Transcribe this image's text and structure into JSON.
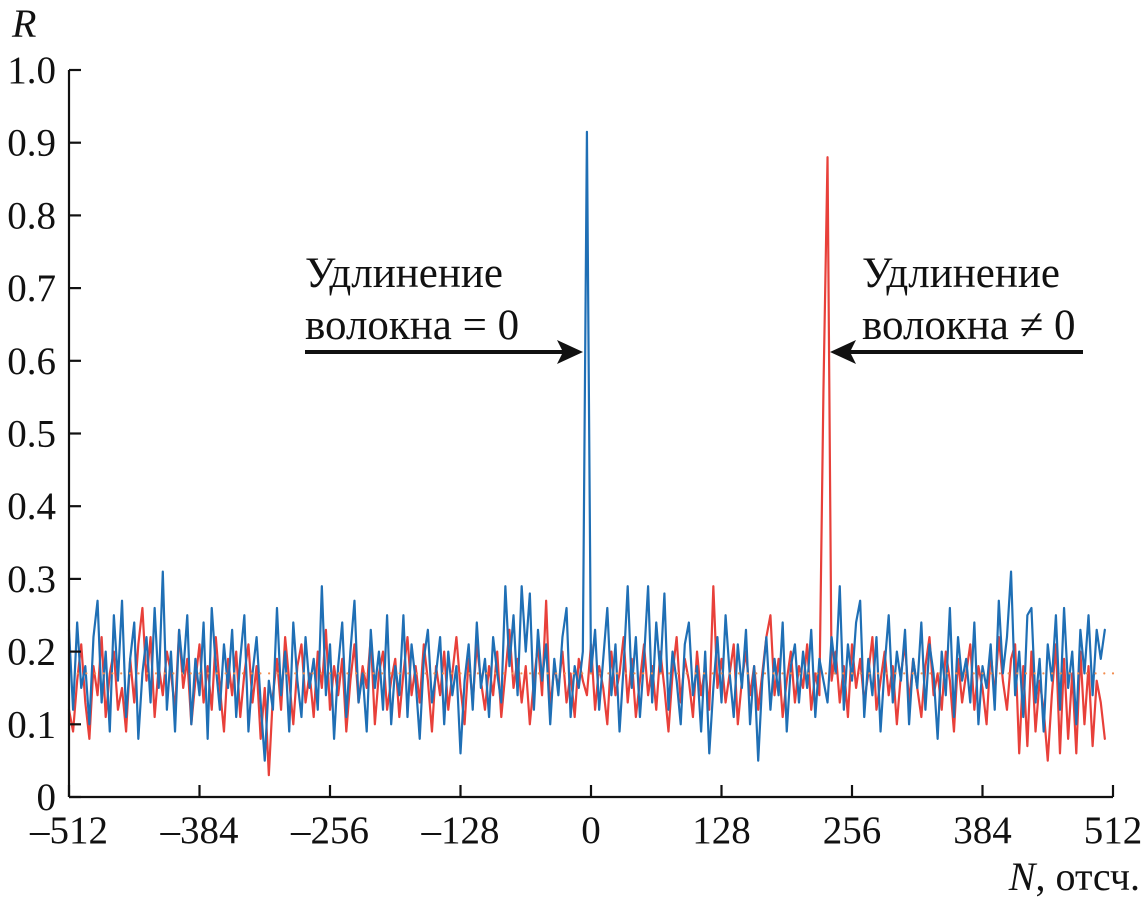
{
  "chart_data": {
    "type": "line",
    "ylabel": "R",
    "xlabel": "N, отсч.",
    "xlim": [
      -512,
      512
    ],
    "ylim": [
      0,
      1.0
    ],
    "grid": false,
    "xticks": [
      "–512",
      "–384",
      "–256",
      "–128",
      "0",
      "128",
      "256",
      "384",
      "512"
    ],
    "yticks": [
      "0",
      "0.1",
      "0.2",
      "0.3",
      "0.4",
      "0.5",
      "0.6",
      "0.7",
      "0.8",
      "0.9",
      "1.0"
    ],
    "x": [
      -512,
      -508,
      -504,
      -500,
      -496,
      -492,
      -488,
      -484,
      -480,
      -476,
      -472,
      -468,
      -464,
      -460,
      -456,
      -452,
      -448,
      -444,
      -440,
      -436,
      -432,
      -428,
      -424,
      -420,
      -416,
      -412,
      -408,
      -404,
      -400,
      -396,
      -392,
      -388,
      -384,
      -380,
      -376,
      -372,
      -368,
      -364,
      -360,
      -356,
      -352,
      -348,
      -344,
      -340,
      -336,
      -332,
      -328,
      -324,
      -320,
      -316,
      -312,
      -308,
      -304,
      -300,
      -296,
      -292,
      -288,
      -284,
      -280,
      -276,
      -272,
      -268,
      -264,
      -260,
      -256,
      -252,
      -248,
      -244,
      -240,
      -236,
      -232,
      -228,
      -224,
      -220,
      -216,
      -212,
      -208,
      -204,
      -200,
      -196,
      -192,
      -188,
      -184,
      -180,
      -176,
      -172,
      -168,
      -164,
      -160,
      -156,
      -152,
      -148,
      -144,
      -140,
      -136,
      -132,
      -128,
      -124,
      -120,
      -116,
      -112,
      -108,
      -104,
      -100,
      -96,
      -92,
      -88,
      -84,
      -80,
      -76,
      -72,
      -68,
      -64,
      -60,
      -56,
      -52,
      -48,
      -44,
      -40,
      -36,
      -32,
      -28,
      -24,
      -20,
      -16,
      -12,
      -8,
      -4,
      0,
      4,
      8,
      12,
      16,
      20,
      24,
      28,
      32,
      36,
      40,
      44,
      48,
      52,
      56,
      60,
      64,
      68,
      72,
      76,
      80,
      84,
      88,
      92,
      96,
      100,
      104,
      108,
      112,
      116,
      120,
      124,
      128,
      132,
      136,
      140,
      144,
      148,
      152,
      156,
      160,
      164,
      168,
      172,
      176,
      180,
      184,
      188,
      192,
      196,
      200,
      204,
      208,
      212,
      216,
      220,
      224,
      228,
      232,
      236,
      240,
      244,
      248,
      252,
      256,
      260,
      264,
      268,
      272,
      276,
      280,
      284,
      288,
      292,
      296,
      300,
      304,
      308,
      312,
      316,
      320,
      324,
      328,
      332,
      336,
      340,
      344,
      348,
      352,
      356,
      360,
      364,
      368,
      372,
      376,
      380,
      384,
      388,
      392,
      396,
      400,
      404,
      408,
      412,
      416,
      420,
      424,
      428,
      432,
      436,
      440,
      444,
      448,
      452,
      456,
      460,
      464,
      468,
      472,
      476,
      480,
      484,
      488,
      492,
      496,
      500,
      504
    ],
    "series": [
      {
        "color": "#e8403a",
        "values": [
          0.12,
          0.09,
          0.16,
          0.21,
          0.13,
          0.08,
          0.18,
          0.14,
          0.22,
          0.11,
          0.17,
          0.2,
          0.12,
          0.15,
          0.09,
          0.19,
          0.13,
          0.21,
          0.26,
          0.16,
          0.22,
          0.11,
          0.18,
          0.14,
          0.2,
          0.17,
          0.12,
          0.23,
          0.15,
          0.19,
          0.1,
          0.16,
          0.21,
          0.13,
          0.18,
          0.12,
          0.22,
          0.15,
          0.09,
          0.19,
          0.14,
          0.2,
          0.11,
          0.17,
          0.21,
          0.13,
          0.18,
          0.08,
          0.15,
          0.03,
          0.14,
          0.19,
          0.12,
          0.22,
          0.16,
          0.1,
          0.18,
          0.21,
          0.13,
          0.17,
          0.11,
          0.2,
          0.15,
          0.23,
          0.12,
          0.18,
          0.14,
          0.19,
          0.09,
          0.16,
          0.21,
          0.13,
          0.18,
          0.15,
          0.22,
          0.1,
          0.17,
          0.2,
          0.12,
          0.16,
          0.19,
          0.11,
          0.17,
          0.22,
          0.14,
          0.18,
          0.13,
          0.21,
          0.16,
          0.09,
          0.18,
          0.14,
          0.2,
          0.12,
          0.17,
          0.22,
          0.15,
          0.1,
          0.19,
          0.13,
          0.21,
          0.16,
          0.12,
          0.18,
          0.14,
          0.2,
          0.11,
          0.17,
          0.23,
          0.15,
          0.19,
          0.13,
          0.18,
          0.1,
          0.16,
          0.21,
          0.14,
          0.27,
          0.12,
          0.18,
          0.15,
          0.2,
          0.13,
          0.17,
          0.11,
          0.19,
          0.16,
          0.14,
          0.21,
          0.12,
          0.18,
          0.15,
          0.1,
          0.2,
          0.14,
          0.17,
          0.22,
          0.13,
          0.19,
          0.11,
          0.16,
          0.21,
          0.14,
          0.18,
          0.12,
          0.2,
          0.15,
          0.09,
          0.17,
          0.22,
          0.13,
          0.19,
          0.16,
          0.11,
          0.2,
          0.14,
          0.18,
          0.12,
          0.29,
          0.15,
          0.19,
          0.13,
          0.17,
          0.21,
          0.1,
          0.16,
          0.2,
          0.14,
          0.18,
          0.12,
          0.17,
          0.22,
          0.25,
          0.14,
          0.19,
          0.11,
          0.16,
          0.2,
          0.13,
          0.18,
          0.15,
          0.21,
          0.12,
          0.17,
          0.14,
          0.56,
          0.88,
          0.16,
          0.2,
          0.13,
          0.18,
          0.11,
          0.21,
          0.15,
          0.19,
          0.13,
          0.17,
          0.22,
          0.12,
          0.16,
          0.2,
          0.14,
          0.18,
          0.1,
          0.17,
          0.21,
          0.13,
          0.19,
          0.15,
          0.11,
          0.18,
          0.22,
          0.14,
          0.17,
          0.12,
          0.2,
          0.16,
          0.09,
          0.19,
          0.13,
          0.17,
          0.21,
          0.12,
          0.18,
          0.15,
          0.1,
          0.2,
          0.14,
          0.22,
          0.16,
          0.12,
          0.19,
          0.21,
          0.06,
          0.18,
          0.07,
          0.2,
          0.09,
          0.16,
          0.12,
          0.05,
          0.14,
          0.21,
          0.06,
          0.19,
          0.08,
          0.17,
          0.06,
          0.2,
          0.1,
          0.18,
          0.07,
          0.16,
          0.13,
          0.08
        ]
      },
      {
        "color": "#1f6fb5",
        "values": [
          0.23,
          0.12,
          0.24,
          0.15,
          0.18,
          0.1,
          0.22,
          0.27,
          0.13,
          0.2,
          0.09,
          0.25,
          0.16,
          0.27,
          0.11,
          0.19,
          0.24,
          0.08,
          0.17,
          0.22,
          0.13,
          0.26,
          0.15,
          0.31,
          0.12,
          0.2,
          0.09,
          0.23,
          0.17,
          0.25,
          0.1,
          0.19,
          0.14,
          0.24,
          0.08,
          0.26,
          0.18,
          0.12,
          0.21,
          0.15,
          0.23,
          0.11,
          0.19,
          0.25,
          0.09,
          0.17,
          0.22,
          0.13,
          0.05,
          0.16,
          0.12,
          0.26,
          0.14,
          0.2,
          0.09,
          0.24,
          0.16,
          0.11,
          0.22,
          0.15,
          0.19,
          0.12,
          0.29,
          0.14,
          0.21,
          0.08,
          0.18,
          0.24,
          0.11,
          0.2,
          0.27,
          0.13,
          0.17,
          0.09,
          0.23,
          0.15,
          0.2,
          0.12,
          0.25,
          0.1,
          0.18,
          0.14,
          0.25,
          0.11,
          0.21,
          0.16,
          0.08,
          0.19,
          0.23,
          0.13,
          0.17,
          0.22,
          0.1,
          0.2,
          0.14,
          0.18,
          0.06,
          0.16,
          0.21,
          0.12,
          0.24,
          0.15,
          0.19,
          0.11,
          0.22,
          0.17,
          0.13,
          0.29,
          0.18,
          0.25,
          0.14,
          0.29,
          0.2,
          0.28,
          0.12,
          0.23,
          0.16,
          0.21,
          0.1,
          0.19,
          0.14,
          0.22,
          0.26,
          0.11,
          0.18,
          0.15,
          0.2,
          0.915,
          0.17,
          0.23,
          0.12,
          0.19,
          0.26,
          0.14,
          0.21,
          0.09,
          0.18,
          0.29,
          0.15,
          0.22,
          0.11,
          0.19,
          0.29,
          0.13,
          0.24,
          0.17,
          0.28,
          0.12,
          0.2,
          0.16,
          0.1,
          0.21,
          0.24,
          0.14,
          0.18,
          0.09,
          0.2,
          0.06,
          0.15,
          0.22,
          0.13,
          0.25,
          0.17,
          0.11,
          0.21,
          0.15,
          0.23,
          0.1,
          0.18,
          0.05,
          0.16,
          0.22,
          0.12,
          0.19,
          0.14,
          0.24,
          0.09,
          0.18,
          0.21,
          0.13,
          0.2,
          0.15,
          0.23,
          0.11,
          0.19,
          0.16,
          0.13,
          0.22,
          0.17,
          0.29,
          0.12,
          0.21,
          0.16,
          0.24,
          0.27,
          0.11,
          0.19,
          0.14,
          0.22,
          0.09,
          0.18,
          0.25,
          0.13,
          0.2,
          0.16,
          0.23,
          0.1,
          0.19,
          0.15,
          0.24,
          0.12,
          0.21,
          0.17,
          0.08,
          0.2,
          0.14,
          0.26,
          0.11,
          0.22,
          0.16,
          0.19,
          0.13,
          0.24,
          0.1,
          0.18,
          0.15,
          0.21,
          0.12,
          0.27,
          0.17,
          0.22,
          0.31,
          0.14,
          0.2,
          0.11,
          0.25,
          0.26,
          0.13,
          0.19,
          0.09,
          0.21,
          0.16,
          0.25,
          0.12,
          0.26,
          0.15,
          0.2,
          0.1,
          0.23,
          0.17,
          0.25,
          0.14,
          0.23,
          0.19,
          0.23
        ]
      },
      {
        "color": "#f28c4e",
        "style": "dotted",
        "x": [
          -512,
          512
        ],
        "values": [
          0.17,
          0.17
        ]
      }
    ],
    "annotations": [
      {
        "lines": [
          "Удлинение",
          "волокна = 0"
        ]
      },
      {
        "lines": [
          "Удлинение",
          "волокна ≠ 0"
        ]
      }
    ]
  }
}
